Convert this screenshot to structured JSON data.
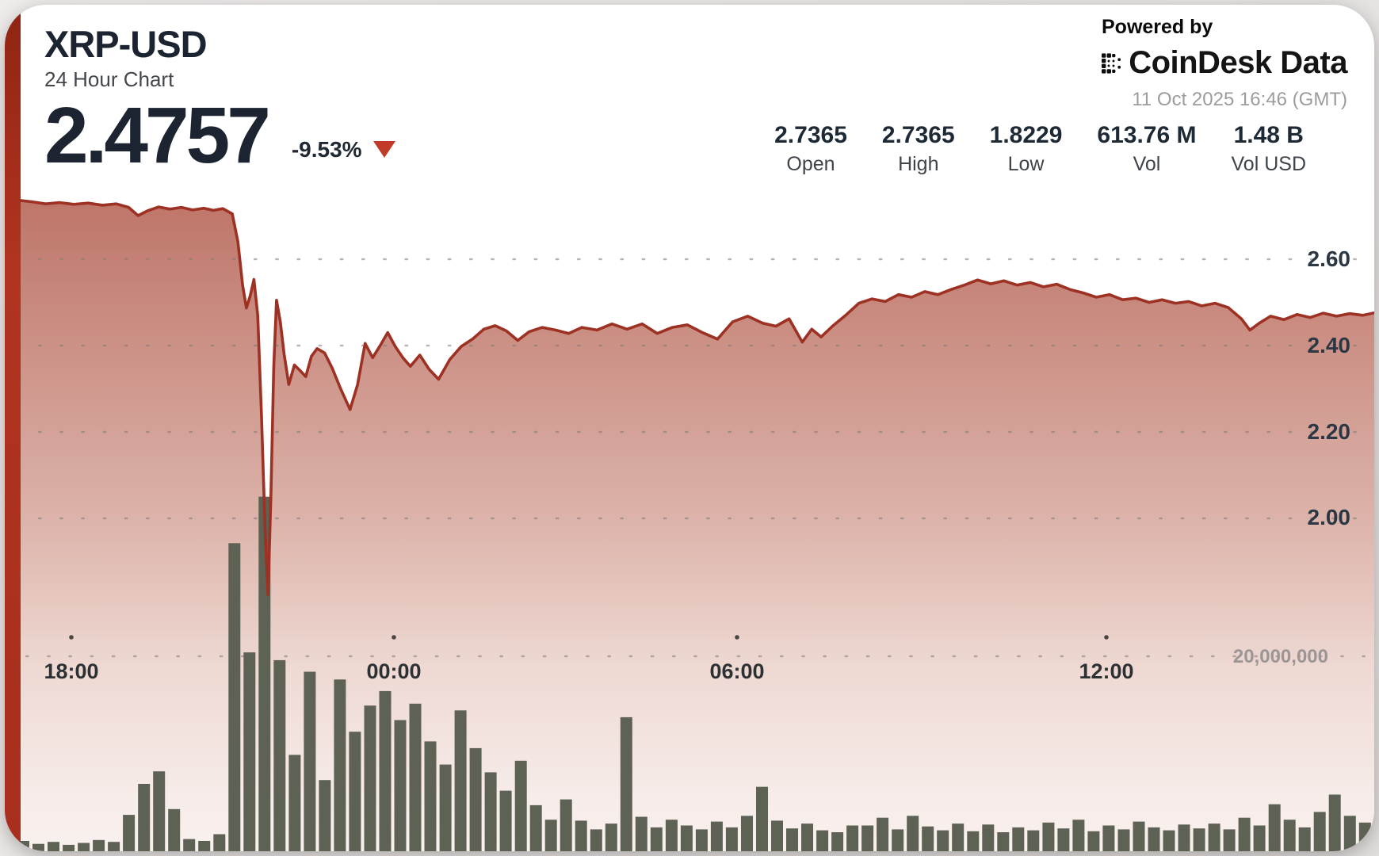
{
  "header": {
    "symbol": "XRP-USD",
    "subtitle": "24 Hour Chart",
    "price": "2.4757",
    "change": "-9.53%",
    "change_direction": "down"
  },
  "branding": {
    "powered_by": "Powered by",
    "brand": "CoinDesk Data",
    "timestamp": "11 Oct 2025 16:46 (GMT)"
  },
  "stats": [
    {
      "value": "2.7365",
      "label": "Open"
    },
    {
      "value": "2.7365",
      "label": "High"
    },
    {
      "value": "1.8229",
      "label": "Low"
    },
    {
      "value": "613.76 M",
      "label": "Vol"
    },
    {
      "value": "1.48 B",
      "label": "Vol USD"
    }
  ],
  "colors": {
    "accent_ribbon": "#a8311f",
    "price_line": "#9d3123",
    "volume_bar": "#5e6254",
    "change_triangle": "#c13a28",
    "title_navy": "#1b2430"
  },
  "chart_data": {
    "type": "area",
    "title": "XRP-USD 24 Hour Chart",
    "subtype": "price area with volume bars",
    "grid": "dotted",
    "legend": "none",
    "x_axis": {
      "tick_labels": [
        "18:00",
        "00:00",
        "06:00",
        "12:00"
      ],
      "span_minutes": 1440,
      "end_time": "11 Oct 2025 16:46 (GMT)"
    },
    "y_axis_price": {
      "tick_labels": [
        "2.60",
        "2.40",
        "2.20",
        "2.00"
      ],
      "ticks": [
        2.6,
        2.4,
        2.2,
        2.0
      ],
      "visible_range": [
        1.78,
        2.78
      ]
    },
    "y_axis_volume": {
      "tick_labels": [
        "20,000,000"
      ],
      "ticks_millions": [
        20
      ]
    },
    "summary": {
      "open": 2.7365,
      "high": 2.7365,
      "low": 1.8229,
      "close": 2.4757,
      "vol": "613.76 M",
      "vol_usd": "1.48 B"
    },
    "price_series": [
      [
        0,
        2.7365
      ],
      [
        15,
        2.733
      ],
      [
        30,
        2.728
      ],
      [
        45,
        2.731
      ],
      [
        60,
        2.727
      ],
      [
        75,
        2.73
      ],
      [
        90,
        2.725
      ],
      [
        105,
        2.728
      ],
      [
        118,
        2.72
      ],
      [
        128,
        2.701
      ],
      [
        138,
        2.712
      ],
      [
        150,
        2.721
      ],
      [
        162,
        2.716
      ],
      [
        174,
        2.72
      ],
      [
        186,
        2.714
      ],
      [
        198,
        2.718
      ],
      [
        208,
        2.713
      ],
      [
        218,
        2.717
      ],
      [
        228,
        2.705
      ],
      [
        234,
        2.64
      ],
      [
        239,
        2.54
      ],
      [
        243,
        2.487
      ],
      [
        247,
        2.515
      ],
      [
        251,
        2.553
      ],
      [
        255,
        2.47
      ],
      [
        259,
        2.24
      ],
      [
        263,
        1.96
      ],
      [
        266,
        1.8229
      ],
      [
        269,
        2.05
      ],
      [
        272,
        2.35
      ],
      [
        275,
        2.505
      ],
      [
        279,
        2.455
      ],
      [
        283,
        2.38
      ],
      [
        288,
        2.31
      ],
      [
        294,
        2.355
      ],
      [
        300,
        2.342
      ],
      [
        306,
        2.328
      ],
      [
        312,
        2.375
      ],
      [
        318,
        2.393
      ],
      [
        326,
        2.383
      ],
      [
        334,
        2.348
      ],
      [
        343,
        2.3
      ],
      [
        353,
        2.252
      ],
      [
        361,
        2.31
      ],
      [
        369,
        2.405
      ],
      [
        377,
        2.372
      ],
      [
        385,
        2.4
      ],
      [
        393,
        2.43
      ],
      [
        401,
        2.398
      ],
      [
        409,
        2.372
      ],
      [
        417,
        2.352
      ],
      [
        427,
        2.378
      ],
      [
        437,
        2.345
      ],
      [
        447,
        2.322
      ],
      [
        459,
        2.368
      ],
      [
        471,
        2.398
      ],
      [
        483,
        2.415
      ],
      [
        495,
        2.438
      ],
      [
        507,
        2.446
      ],
      [
        519,
        2.434
      ],
      [
        531,
        2.412
      ],
      [
        543,
        2.432
      ],
      [
        557,
        2.442
      ],
      [
        571,
        2.436
      ],
      [
        585,
        2.428
      ],
      [
        599,
        2.442
      ],
      [
        615,
        2.436
      ],
      [
        631,
        2.45
      ],
      [
        647,
        2.438
      ],
      [
        663,
        2.45
      ],
      [
        679,
        2.428
      ],
      [
        695,
        2.442
      ],
      [
        711,
        2.448
      ],
      [
        727,
        2.43
      ],
      [
        743,
        2.415
      ],
      [
        759,
        2.455
      ],
      [
        775,
        2.468
      ],
      [
        791,
        2.452
      ],
      [
        805,
        2.445
      ],
      [
        819,
        2.462
      ],
      [
        833,
        2.408
      ],
      [
        843,
        2.438
      ],
      [
        853,
        2.42
      ],
      [
        865,
        2.445
      ],
      [
        879,
        2.47
      ],
      [
        893,
        2.498
      ],
      [
        907,
        2.508
      ],
      [
        921,
        2.502
      ],
      [
        935,
        2.518
      ],
      [
        949,
        2.512
      ],
      [
        963,
        2.525
      ],
      [
        977,
        2.518
      ],
      [
        991,
        2.53
      ],
      [
        1005,
        2.54
      ],
      [
        1019,
        2.552
      ],
      [
        1033,
        2.543
      ],
      [
        1047,
        2.55
      ],
      [
        1061,
        2.54
      ],
      [
        1075,
        2.546
      ],
      [
        1089,
        2.536
      ],
      [
        1103,
        2.542
      ],
      [
        1117,
        2.53
      ],
      [
        1131,
        2.522
      ],
      [
        1145,
        2.512
      ],
      [
        1159,
        2.518
      ],
      [
        1173,
        2.506
      ],
      [
        1187,
        2.51
      ],
      [
        1201,
        2.5
      ],
      [
        1215,
        2.506
      ],
      [
        1229,
        2.498
      ],
      [
        1243,
        2.502
      ],
      [
        1257,
        2.492
      ],
      [
        1271,
        2.498
      ],
      [
        1285,
        2.488
      ],
      [
        1299,
        2.462
      ],
      [
        1308,
        2.436
      ],
      [
        1318,
        2.452
      ],
      [
        1330,
        2.468
      ],
      [
        1344,
        2.46
      ],
      [
        1358,
        2.472
      ],
      [
        1372,
        2.465
      ],
      [
        1386,
        2.475
      ],
      [
        1400,
        2.468
      ],
      [
        1414,
        2.474
      ],
      [
        1428,
        2.47
      ],
      [
        1440,
        2.4757
      ]
    ],
    "volume_series_millions": [
      0.9,
      0.6,
      0.8,
      0.5,
      0.7,
      1.0,
      0.8,
      3.6,
      6.8,
      8.1,
      4.2,
      1.1,
      0.9,
      1.6,
      31.7,
      20.4,
      36.5,
      19.6,
      9.8,
      18.4,
      7.2,
      17.6,
      12.2,
      14.9,
      16.4,
      13.4,
      15.1,
      11.2,
      8.8,
      14.4,
      10.5,
      8.0,
      6.1,
      9.2,
      4.6,
      3.1,
      5.2,
      3.0,
      2.1,
      2.7,
      13.7,
      3.4,
      2.3,
      3.1,
      2.5,
      2.1,
      2.9,
      2.3,
      3.5,
      6.5,
      3.0,
      2.2,
      2.7,
      2.0,
      1.8,
      2.5,
      2.5,
      3.3,
      2.1,
      3.5,
      2.4,
      2.0,
      2.7,
      1.9,
      2.6,
      1.8,
      2.3,
      2.0,
      2.8,
      2.2,
      3.1,
      1.9,
      2.5,
      2.1,
      2.9,
      2.3,
      2.0,
      2.6,
      2.2,
      2.7,
      2.1,
      3.3,
      2.5,
      4.7,
      3.1,
      2.3,
      3.9,
      5.7,
      3.5,
      2.8
    ]
  }
}
